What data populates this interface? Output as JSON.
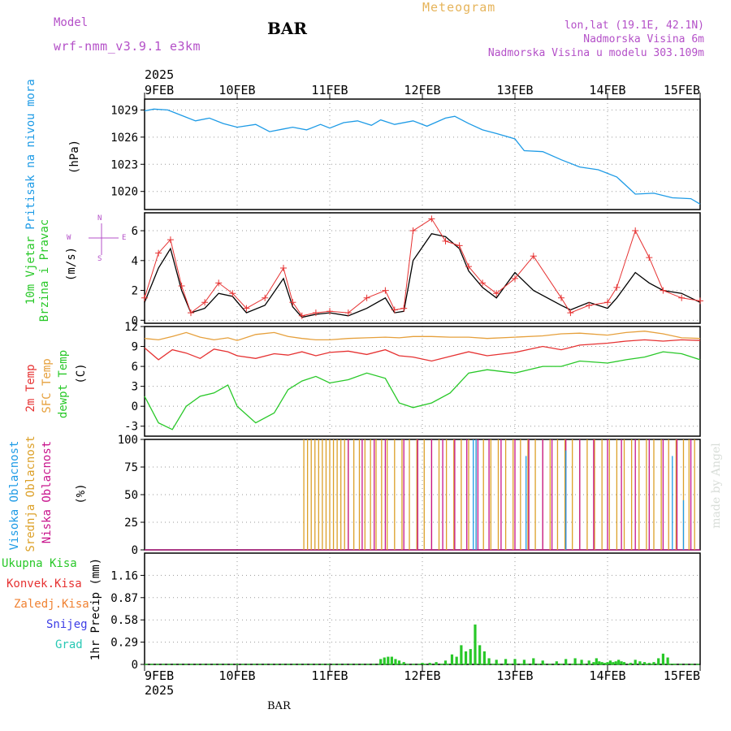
{
  "header": {
    "model_label": "Model",
    "model_name": "wrf-nmm_v3.9.1 e3km",
    "station": "BAR",
    "product": "Meteogram",
    "lonlat": "lon,lat (19.1E, 42.1N)",
    "elevation": "Nadmorska Visina 6m",
    "model_elevation": "Nadmorska Visina u modelu 303.109m"
  },
  "footer": {
    "station": "BAR",
    "credit": "made by Angel"
  },
  "time_axis": {
    "year": "2025",
    "ticks": [
      "9FEB",
      "10FEB",
      "11FEB",
      "12FEB",
      "13FEB",
      "14FEB",
      "15FEB"
    ]
  },
  "wind_legend": {
    "north": "N",
    "south": "S",
    "west": "W",
    "east": "E"
  },
  "colors": {
    "pressure": "#1e9be6",
    "temp2m": "#e63232",
    "sfc": "#e6a03c",
    "dewpt": "#28c828",
    "visoka": "#1e9be6",
    "srednja": "#dca028",
    "niska": "#c8148c",
    "precip_total": "#28c828",
    "konvek": "#e63232",
    "zaledj": "#f08232",
    "snijeg": "#3c3ce6",
    "grad": "#28c8b4",
    "wind_label": "#b450c8",
    "speed_smooth": "#000000",
    "speed_gust": "#e63232"
  },
  "chart_data": [
    {
      "type": "line",
      "title": "",
      "ylabel": "(hPa)",
      "series_labels": [
        "Pritisak na nivou mora"
      ],
      "yticks": [
        "1020",
        "1023",
        "1026",
        "1029"
      ],
      "ylim": [
        1018,
        1030.2
      ],
      "x_days": [
        0,
        0.1,
        0.25,
        0.4,
        0.55,
        0.7,
        0.85,
        1.0,
        1.2,
        1.35,
        1.5,
        1.6,
        1.75,
        1.9,
        2.0,
        2.15,
        2.3,
        2.45,
        2.55,
        2.7,
        2.9,
        3.05,
        3.25,
        3.35,
        3.5,
        3.65,
        3.8,
        4.0,
        4.1,
        4.3,
        4.5,
        4.7,
        4.9,
        5.1,
        5.3,
        5.5,
        5.7,
        5.9,
        6.0
      ],
      "series": [
        {
          "name": "Pritisak na nivou mora",
          "values": [
            1028.9,
            1029.1,
            1029.0,
            1028.4,
            1027.8,
            1028.1,
            1027.5,
            1027.1,
            1027.4,
            1026.6,
            1026.9,
            1027.1,
            1026.8,
            1027.4,
            1027.0,
            1027.6,
            1027.8,
            1027.3,
            1027.9,
            1027.4,
            1027.8,
            1027.2,
            1028.1,
            1028.3,
            1027.5,
            1026.8,
            1026.4,
            1025.8,
            1024.5,
            1024.4,
            1023.5,
            1022.7,
            1022.4,
            1021.6,
            1019.7,
            1019.8,
            1019.3,
            1019.2,
            1018.6
          ]
        }
      ]
    },
    {
      "type": "line",
      "title": "",
      "ylabel": "(m/s)",
      "series_labels": [
        "10m Vjetar",
        "Brzina i Pravac"
      ],
      "yticks": [
        "0",
        "2",
        "4",
        "6"
      ],
      "ylim": [
        -0.2,
        7.2
      ],
      "x_days": [
        0,
        0.15,
        0.28,
        0.4,
        0.5,
        0.65,
        0.8,
        0.95,
        1.1,
        1.3,
        1.5,
        1.6,
        1.7,
        1.85,
        2.0,
        2.2,
        2.4,
        2.6,
        2.7,
        2.8,
        2.9,
        3.1,
        3.25,
        3.4,
        3.5,
        3.65,
        3.8,
        4.0,
        4.2,
        4.5,
        4.6,
        4.8,
        5.0,
        5.1,
        5.3,
        5.45,
        5.6,
        5.8,
        6.0
      ],
      "series": [
        {
          "name": "",
          "values": [
            1.2,
            3.5,
            4.8,
            2.0,
            0.5,
            0.8,
            1.8,
            1.6,
            0.5,
            1.0,
            2.8,
            0.9,
            0.2,
            0.4,
            0.5,
            0.3,
            0.8,
            1.5,
            0.5,
            0.6,
            4.0,
            5.8,
            5.6,
            4.8,
            3.3,
            2.2,
            1.5,
            3.2,
            2.0,
            1.0,
            0.7,
            1.2,
            0.8,
            1.5,
            3.2,
            2.5,
            2.0,
            1.8,
            1.2
          ]
        },
        {
          "name": "",
          "values": [
            1.5,
            4.5,
            5.4,
            2.3,
            0.5,
            1.2,
            2.5,
            1.8,
            0.8,
            1.5,
            3.5,
            1.2,
            0.3,
            0.5,
            0.6,
            0.5,
            1.5,
            2.0,
            0.7,
            0.8,
            6.0,
            6.8,
            5.3,
            5.0,
            3.6,
            2.5,
            1.8,
            2.8,
            4.3,
            1.5,
            0.5,
            1.0,
            1.2,
            2.2,
            6.0,
            4.2,
            2.0,
            1.5,
            1.3
          ]
        }
      ]
    },
    {
      "type": "line",
      "title": "",
      "ylabel": "(C)",
      "series_labels": [
        "2m Temp",
        "SFC Temp",
        "dewpt Temp"
      ],
      "yticks": [
        "-3",
        "0",
        "3",
        "6",
        "9",
        "12"
      ],
      "ylim": [
        -4.5,
        12
      ],
      "x_days": [
        0,
        0.15,
        0.3,
        0.45,
        0.6,
        0.75,
        0.9,
        1.0,
        1.2,
        1.4,
        1.55,
        1.7,
        1.85,
        2.0,
        2.2,
        2.4,
        2.6,
        2.75,
        2.9,
        3.1,
        3.3,
        3.5,
        3.7,
        4.0,
        4.3,
        4.5,
        4.7,
        5.0,
        5.2,
        5.4,
        5.6,
        5.8,
        6.0
      ],
      "series": [
        {
          "name": "2m Temp",
          "values": [
            8.8,
            7.0,
            8.5,
            8.0,
            7.2,
            8.6,
            8.2,
            7.6,
            7.2,
            7.9,
            7.7,
            8.2,
            7.6,
            8.1,
            8.3,
            7.8,
            8.5,
            7.6,
            7.4,
            6.8,
            7.5,
            8.2,
            7.6,
            8.1,
            9.0,
            8.5,
            9.2,
            9.5,
            9.8,
            10.0,
            9.8,
            10.0,
            9.9
          ]
        },
        {
          "name": "SFC Temp",
          "values": [
            10.2,
            10.0,
            10.5,
            11.1,
            10.4,
            10.0,
            10.3,
            9.9,
            10.8,
            11.1,
            10.5,
            10.2,
            10.0,
            10.0,
            10.2,
            10.3,
            10.4,
            10.3,
            10.5,
            10.5,
            10.4,
            10.4,
            10.2,
            10.4,
            10.6,
            10.9,
            11.0,
            10.7,
            11.1,
            11.3,
            10.9,
            10.3,
            10.2
          ]
        },
        {
          "name": "dewpt Temp",
          "values": [
            1.5,
            -2.5,
            -3.5,
            0.0,
            1.5,
            2.0,
            3.2,
            0.0,
            -2.5,
            -1.0,
            2.5,
            3.8,
            4.5,
            3.5,
            4.0,
            5.0,
            4.2,
            0.5,
            -0.2,
            0.5,
            2.0,
            5.0,
            5.5,
            5.0,
            6.0,
            6.0,
            6.8,
            6.5,
            7.0,
            7.4,
            8.2,
            7.9,
            7.0
          ]
        }
      ]
    },
    {
      "type": "bar",
      "title": "",
      "ylabel": "(%)",
      "series_labels": [
        "Visoka Oblacnost",
        "Srednja Oblacnost",
        "Niska Oblacnost"
      ],
      "yticks": [
        "0",
        "25",
        "50",
        "75",
        "100"
      ],
      "ylim": [
        0,
        100
      ],
      "series": [
        {
          "name": "Srednja Oblacnost",
          "x_days": [
            1.72,
            1.76,
            1.8,
            1.84,
            1.88,
            1.92,
            1.96,
            2.0,
            2.04,
            2.08,
            2.12,
            2.16,
            2.2,
            2.26,
            2.32,
            2.38,
            2.44,
            2.5,
            2.56,
            2.62,
            2.7,
            2.78,
            2.86,
            2.94,
            3.02,
            3.1,
            3.18,
            3.26,
            3.34,
            3.42,
            3.5,
            3.58,
            3.66,
            3.74,
            3.82,
            3.9,
            3.98,
            4.06,
            4.14,
            4.22,
            4.3,
            4.38,
            4.46,
            4.54,
            4.62,
            4.7,
            4.78,
            4.86,
            4.94,
            5.02,
            5.1,
            5.18,
            5.26,
            5.34,
            5.42,
            5.5,
            5.58,
            5.66,
            5.74,
            5.82,
            5.88,
            5.94
          ],
          "values": [
            100,
            100,
            100,
            100,
            100,
            100,
            100,
            100,
            100,
            100,
            100,
            100,
            100,
            100,
            100,
            100,
            100,
            100,
            100,
            100,
            100,
            100,
            100,
            100,
            100,
            100,
            100,
            100,
            100,
            100,
            100,
            100,
            100,
            100,
            100,
            100,
            100,
            100,
            100,
            100,
            100,
            100,
            100,
            100,
            100,
            100,
            100,
            100,
            100,
            100,
            100,
            100,
            100,
            100,
            100,
            100,
            100,
            100,
            100,
            100,
            100,
            100
          ]
        },
        {
          "name": "Niska Oblacnost",
          "x_days": [
            2.2,
            2.35,
            2.48,
            2.6,
            2.8,
            2.95,
            3.1,
            3.22,
            3.35,
            3.48,
            3.6,
            3.72,
            3.85,
            4.0,
            4.15,
            4.3,
            4.4,
            4.55,
            4.7,
            4.85,
            5.0,
            5.15,
            5.3,
            5.45,
            5.6,
            5.75,
            5.9
          ],
          "values": [
            100,
            100,
            100,
            100,
            100,
            100,
            100,
            100,
            100,
            100,
            100,
            100,
            100,
            100,
            100,
            100,
            100,
            100,
            100,
            100,
            100,
            100,
            100,
            100,
            100,
            100,
            100
          ]
        },
        {
          "name": "Visoka Oblacnost",
          "x_days": [
            3.55,
            3.58,
            4.12,
            4.55,
            5.7,
            5.82
          ],
          "values": [
            100,
            100,
            85,
            90,
            85,
            45
          ]
        }
      ]
    },
    {
      "type": "bar",
      "title": "",
      "ylabel": "1hr Precip (mm)",
      "series_labels": [
        "Ukupna Kisa",
        "Konvek.Kisa",
        "Zaledj.Kisa",
        "Snijeg",
        "Grad"
      ],
      "yticks": [
        "0",
        "0.29",
        "0.58",
        "0.87",
        "1.16"
      ],
      "ylim": [
        0,
        1.45
      ],
      "series": [
        {
          "name": "Ukupna Kisa",
          "x_days": [
            2.55,
            2.59,
            2.63,
            2.67,
            2.71,
            2.75,
            2.8,
            3.0,
            3.08,
            3.15,
            3.25,
            3.32,
            3.37,
            3.42,
            3.47,
            3.52,
            3.57,
            3.62,
            3.67,
            3.72,
            3.8,
            3.9,
            4.0,
            4.1,
            4.2,
            4.3,
            4.45,
            4.55,
            4.65,
            4.72,
            4.8,
            4.85,
            4.88,
            4.91,
            4.94,
            4.97,
            5.0,
            5.03,
            5.06,
            5.09,
            5.12,
            5.15,
            5.18,
            5.25,
            5.3,
            5.35,
            5.4,
            5.45,
            5.5,
            5.55,
            5.6,
            5.65,
            5.7
          ],
          "values": [
            0.07,
            0.09,
            0.1,
            0.1,
            0.07,
            0.05,
            0.03,
            0.02,
            0.02,
            0.03,
            0.05,
            0.13,
            0.1,
            0.25,
            0.17,
            0.2,
            0.52,
            0.25,
            0.17,
            0.08,
            0.06,
            0.07,
            0.07,
            0.06,
            0.08,
            0.05,
            0.04,
            0.07,
            0.08,
            0.06,
            0.05,
            0.03,
            0.08,
            0.04,
            0.03,
            0.02,
            0.03,
            0.05,
            0.03,
            0.04,
            0.06,
            0.04,
            0.03,
            0.02,
            0.06,
            0.04,
            0.03,
            0.02,
            0.03,
            0.08,
            0.14,
            0.09,
            0.01
          ]
        }
      ]
    }
  ]
}
